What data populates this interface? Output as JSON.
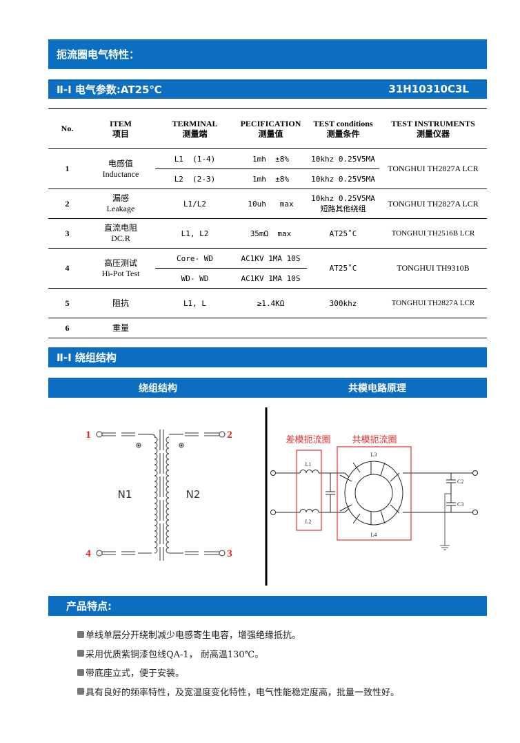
{
  "header": {
    "title": "扼流圈电气特性："
  },
  "section_params": {
    "title": "Ⅱ-Ⅰ 电气参数:AT25℃",
    "part_number": "31H10310C3L"
  },
  "table": {
    "headers": [
      {
        "en": "No.",
        "zh": ""
      },
      {
        "en": "ITEM",
        "zh": "项目"
      },
      {
        "en": "TERMINAL",
        "zh": "测量端"
      },
      {
        "en": "PECIFICATION",
        "zh": "测量值"
      },
      {
        "en": "TEST conditions",
        "zh": "测量条件"
      },
      {
        "en": "TEST INSTRUMENTS",
        "zh": "测量仪器"
      }
    ],
    "rows": [
      {
        "no": "1",
        "item_zh": "电感值",
        "item_en": "Inductance",
        "sub": [
          {
            "terminal": "L1  (1-4)",
            "spec": "1mh  ±8%",
            "cond": "10khz 0.25V5MA"
          },
          {
            "terminal": "L2  (2-3)",
            "spec": "1mh  ±8%",
            "cond": "10khz 0.25V5MA"
          }
        ],
        "instrument": "TONGHUI TH2827A LCR"
      },
      {
        "no": "2",
        "item_zh": "漏感",
        "item_en": "Leakage",
        "terminal": "L1/L2",
        "spec": "10uh   max",
        "cond": "10khz 0.25V5MA",
        "cond2": "短路其他绕组",
        "instrument": "TONGHUI TH2827A LCR"
      },
      {
        "no": "3",
        "item_zh": "直流电阻",
        "item_en": "DC.R",
        "terminal": "L1, L2",
        "spec": "35mΩ  max",
        "cond": "AT25˚C",
        "instrument": "TONGHUI TH2516B LCR"
      },
      {
        "no": "4",
        "item_zh": "高压测试",
        "item_en": "Hi-Pot Test",
        "sub": [
          {
            "terminal": "Core- WD",
            "spec": "AC1KV 1MA 10S"
          },
          {
            "terminal": "WD- WD",
            "spec": "AC1KV 1MA 10S"
          }
        ],
        "cond": "AT25˚C",
        "instrument": "TONGHUI TH9310B"
      },
      {
        "no": "5",
        "item_zh": "阻抗",
        "terminal": "L1, L",
        "spec": "≥1.4KΩ",
        "cond": "300khz",
        "instrument": "TONGHUI TH2827A LCR"
      },
      {
        "no": "6",
        "item_zh": "重量"
      }
    ]
  },
  "section_winding": {
    "title": "Ⅱ-Ⅰ 绕组结构",
    "left_header": "绕组结构",
    "right_header": "共模电路原理"
  },
  "winding_diagram": {
    "pins": [
      "1",
      "2",
      "3",
      "4"
    ],
    "n1": "N1",
    "n2": "N2",
    "pin_color": "#e02020"
  },
  "circuit_diagram": {
    "dm_label": "差模扼流圈",
    "cm_label": "共模扼流圈",
    "l1": "L1",
    "l2": "L2",
    "l3": "L3",
    "l4": "L4",
    "c2": "C2",
    "c3": "C3",
    "label_color": "#e03030"
  },
  "features": {
    "title": "产品特点:",
    "items": [
      "单线单层分开绕制减少电感寄生电容，增强绝缘抵抗。",
      "采用优质紫铜漆包线QA-1， 耐高温130℃。",
      "带底座立式，便于安装。",
      "具有良好的频率特性，及宽温度变化特性，电气性能稳定度高，批量一致性好。"
    ]
  },
  "colors": {
    "accent": "#0b6ec0"
  }
}
